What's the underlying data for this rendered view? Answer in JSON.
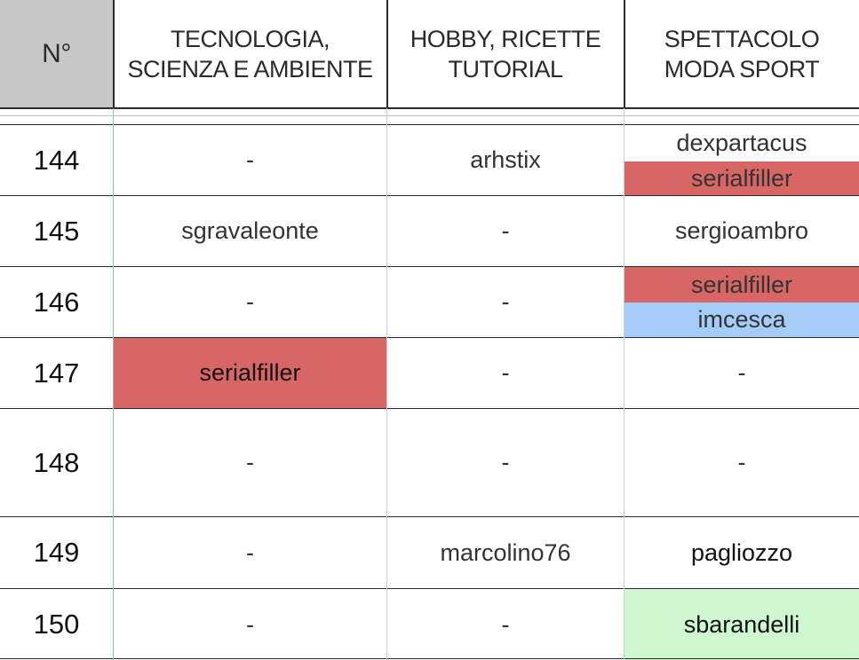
{
  "headers": {
    "num": "N°",
    "col1": [
      "TECNOLOGIA,",
      "SCIENZA E AMBIENTE"
    ],
    "col2": [
      "HOBBY, RICETTE",
      "TUTORIAL"
    ],
    "col3": [
      "SPETTACOLO",
      "MODA SPORT"
    ]
  },
  "rows": [
    {
      "n": "144",
      "c1": "-",
      "c2": "arhstix",
      "c3a": "dexpartacus",
      "c3b": "serialfiller"
    },
    {
      "n": "145",
      "c1": "sgravaleonte",
      "c2": "-",
      "c3": "sergioambro"
    },
    {
      "n": "146",
      "c1": "-",
      "c2": "-",
      "c3a": "serialfiller",
      "c3b": "imcesca"
    },
    {
      "n": "147",
      "c1": "serialfiller",
      "c2": "-",
      "c3": "-"
    },
    {
      "n": "148",
      "c1": "-",
      "c2": "-",
      "c3": "-"
    },
    {
      "n": "149",
      "c1": "-",
      "c2": "marcolino76",
      "c3": "pagliozzo"
    },
    {
      "n": "150",
      "c1": "-",
      "c2": "-",
      "c3": "sbarandelli"
    }
  ],
  "colors": {
    "header_num_bg": "#c8c8c8",
    "red": "#d86664",
    "blue": "#a5cdf8",
    "green": "#cff7d0",
    "grid": "#2b2b2b",
    "frozen_divider": "#8fc5a6"
  }
}
